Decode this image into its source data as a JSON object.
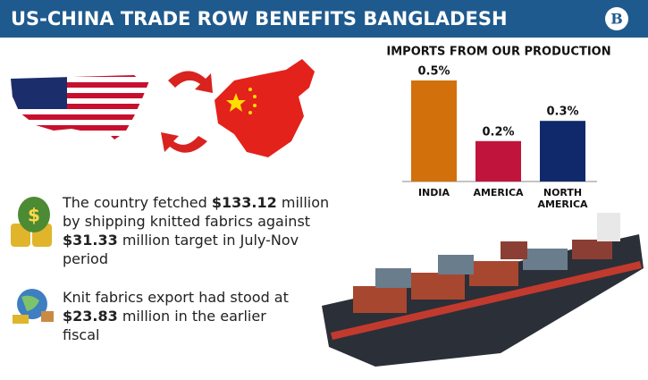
{
  "header": {
    "title": "US-CHINA TRADE ROW BENEFITS BANGLADESH",
    "logo": "B"
  },
  "chart_data": {
    "type": "bar",
    "title": "IMPORTS FROM OUR PRODUCTION",
    "categories": [
      "INDIA",
      "AMERICA",
      "NORTH AMERICA"
    ],
    "series": [
      {
        "name": "Imports",
        "colors": [
          "#d2700c",
          "#c0143c",
          "#10296a"
        ],
        "values": [
          0.5,
          0.2,
          0.3
        ],
        "value_labels": [
          "0.5%",
          "0.2%",
          "0.3%"
        ]
      }
    ]
  },
  "facts": [
    [
      "The country fetched ",
      "$133.12",
      " million by shipping knitted fabrics against ",
      "$31.33",
      " million target in July-Nov period"
    ],
    [
      "Knit fabrics export had stood at ",
      "$23.83",
      " million in the earlier fiscal"
    ]
  ]
}
